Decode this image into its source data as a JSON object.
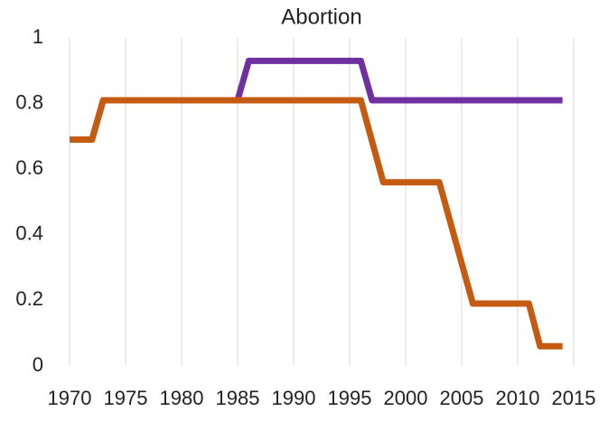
{
  "chart_data": {
    "type": "line",
    "title": "Abortion",
    "xlim": [
      1970,
      2015
    ],
    "xticks": [
      1970,
      1975,
      1980,
      1985,
      1990,
      1995,
      2000,
      2005,
      2010,
      2015
    ],
    "ylim": [
      0,
      1
    ],
    "yticks": [
      0,
      0.2,
      0.4,
      0.6,
      0.8,
      1
    ],
    "grid": "x",
    "series": [
      {
        "color": "#7030a0",
        "x": [
          1970,
          1972,
          1973,
          1985,
          1986,
          1996,
          1997,
          2014
        ],
        "values": [
          0.69,
          0.69,
          0.81,
          0.81,
          0.93,
          0.93,
          0.81,
          0.81
        ]
      },
      {
        "color": "#c55a11",
        "x": [
          1970,
          1972,
          1973,
          1996,
          1998,
          2003,
          2006,
          2011,
          2012,
          2014
        ],
        "values": [
          0.69,
          0.69,
          0.81,
          0.81,
          0.56,
          0.56,
          0.19,
          0.19,
          0.06,
          0.06
        ]
      }
    ]
  }
}
